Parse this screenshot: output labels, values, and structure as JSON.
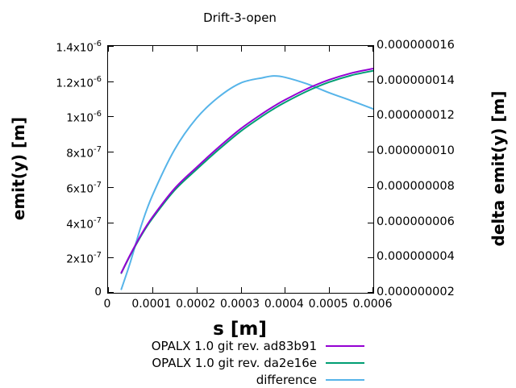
{
  "title": "Drift-3-open",
  "axes": {
    "x": {
      "label": "s [m]",
      "min": 0,
      "max": 0.0006,
      "ticks": [
        "0",
        "0.0001",
        "0.0002",
        "0.0003",
        "0.0004",
        "0.0005",
        "0.0006"
      ]
    },
    "y_left": {
      "label": "emit(y) [m]",
      "min": 0,
      "max": 1.4e-06,
      "ticks_top_to_bottom": [
        {
          "m": "1.4x10",
          "e": "-6"
        },
        {
          "m": "1.2x10",
          "e": "-6"
        },
        {
          "m": "1x10",
          "e": "-6"
        },
        {
          "m": "8x10",
          "e": "-7"
        },
        {
          "m": "6x10",
          "e": "-7"
        },
        {
          "m": "4x10",
          "e": "-7"
        },
        {
          "m": "2x10",
          "e": "-7"
        },
        {
          "m": "0",
          "e": ""
        }
      ]
    },
    "y_right": {
      "label": "delta emit(y) [m]",
      "min": 2e-09,
      "max": 1.6e-08,
      "ticks_top_to_bottom": [
        "0.000000016",
        "0.000000014",
        "0.000000012",
        "0.000000010",
        "0.000000008",
        "0.000000006",
        "0.000000004",
        "0.000000002"
      ]
    }
  },
  "colors": {
    "series1": "#9400d3",
    "series2": "#009e73",
    "difference": "#56b4e9",
    "axis": "#000000",
    "background": "#ffffff"
  },
  "chart_data": {
    "type": "line",
    "title": "Drift-3-open",
    "xlabel": "s [m]",
    "ylabel_left": "emit(y) [m]",
    "ylabel_right": "delta emit(y) [m]",
    "x_range": [
      0,
      0.0006
    ],
    "y_left_range": [
      0,
      1.4e-06
    ],
    "y_right_range": [
      2e-09,
      1.6e-08
    ],
    "grid": false,
    "legend_position": "bottom-center",
    "x": [
      3e-05,
      5e-05,
      7.5e-05,
      0.0001,
      0.00015,
      0.0002,
      0.00025,
      0.0003,
      0.00035,
      0.000375,
      0.0004,
      0.00045,
      0.0005,
      0.00055,
      0.0006
    ],
    "series": [
      {
        "name": "OPALX 1.0 git rev. ad83b91",
        "axis": "left",
        "color": "#9400d3",
        "values": [
          1.14e-07,
          2.15e-07,
          3.3e-07,
          4.28e-07,
          5.9e-07,
          7.11e-07,
          8.25e-07,
          9.3e-07,
          1.018e-06,
          1.058e-06,
          1.094e-06,
          1.157e-06,
          1.208e-06,
          1.246e-06,
          1.272e-06
        ]
      },
      {
        "name": "OPALX 1.0 git rev. da2e16e",
        "axis": "left",
        "color": "#009e73",
        "values": [
          1.118e-07,
          2.113e-07,
          3.242e-07,
          4.205e-07,
          5.799e-07,
          6.991e-07,
          8.119e-07,
          9.161e-07,
          1.0038e-06,
          1.0437e-06,
          1.0798e-06,
          1.1432e-06,
          1.1947e-06,
          1.2331e-06,
          1.2596e-06
        ]
      },
      {
        "name": "difference",
        "axis": "right",
        "color": "#56b4e9",
        "values": [
          2.2e-09,
          3.7e-09,
          5.8e-09,
          7.5e-09,
          1.01e-08,
          1.19e-08,
          1.31e-08,
          1.39e-08,
          1.42e-08,
          1.43e-08,
          1.4225e-08,
          1.385e-08,
          1.335e-08,
          1.29e-08,
          1.243e-08
        ]
      }
    ]
  }
}
